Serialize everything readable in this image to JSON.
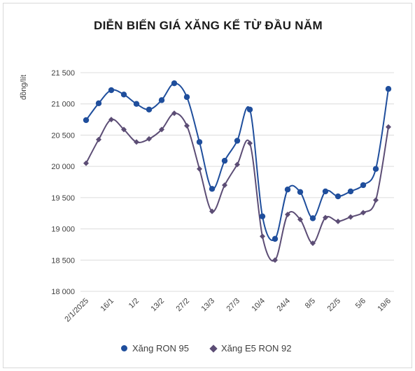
{
  "chart_data": {
    "type": "line",
    "title": "DIỄN BIẾN GIÁ XĂNG KỂ TỪ ĐẦU NĂM",
    "ylabel": "đồng/lít",
    "xlabel": "",
    "ylim": [
      18000,
      21500
    ],
    "ytick_labels": [
      "18 000",
      "18 500",
      "19 000",
      "19 500",
      "20 000",
      "20 500",
      "21 000",
      "21 500"
    ],
    "ytick_values": [
      18000,
      18500,
      19000,
      19500,
      20000,
      20500,
      21000,
      21500
    ],
    "xtick_labels": [
      "2/1/2025",
      "16/1",
      "1/2",
      "13/2",
      "27/2",
      "13/3",
      "27/3",
      "10/4",
      "24/4",
      "8/5",
      "22/5",
      "5/6",
      "19/6"
    ],
    "xtick_positions": [
      0,
      2,
      4,
      6,
      8,
      10,
      12,
      14,
      16,
      18,
      20,
      22,
      24
    ],
    "grid": "horizontal",
    "legend_position": "bottom",
    "series": [
      {
        "name": "Xăng RON 95",
        "color": "#1f4e9c",
        "marker": "circle",
        "values": [
          20740,
          21010,
          21220,
          21150,
          21000,
          20910,
          21060,
          21330,
          21110,
          20390,
          19640,
          20090,
          20410,
          20910,
          19200,
          18840,
          19630,
          19590,
          19170,
          19600,
          19520,
          19600,
          19700,
          19960,
          21240
        ]
      },
      {
        "name": "Xăng E5 RON 92",
        "color": "#5c4d75",
        "marker": "diamond",
        "values": [
          20050,
          20430,
          20750,
          20590,
          20390,
          20440,
          20590,
          20850,
          20650,
          19960,
          19280,
          19700,
          20030,
          20370,
          18880,
          18500,
          19230,
          19150,
          18770,
          19180,
          19120,
          19190,
          19260,
          19460,
          20630
        ]
      }
    ]
  }
}
